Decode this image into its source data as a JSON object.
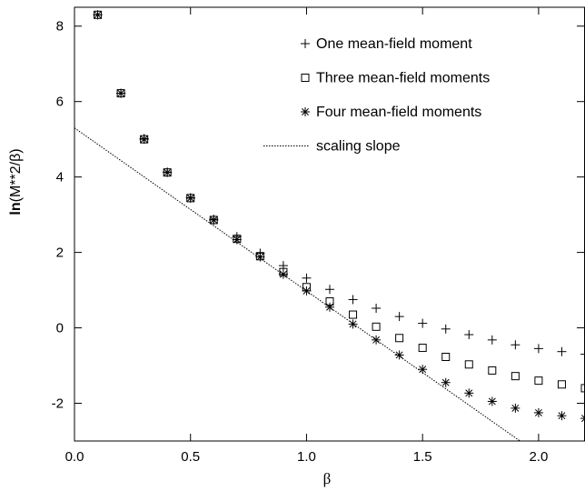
{
  "chart_data": {
    "type": "scatter",
    "xlabel": "β",
    "ylabel_bold": "ln",
    "ylabel_rest": "(M**2/β)",
    "xlim": [
      0.0,
      2.2
    ],
    "ylim": [
      -3.0,
      8.5
    ],
    "x_ticks": [
      0.0,
      0.5,
      1.0,
      1.5,
      2.0
    ],
    "x_tick_labels": [
      "0.0",
      "0.5",
      "1.0",
      "1.5",
      "2.0"
    ],
    "y_ticks": [
      -2,
      0,
      2,
      4,
      6,
      8
    ],
    "y_tick_labels": [
      "-2",
      "0",
      "2",
      "4",
      "6",
      "8"
    ],
    "legend_position": "top-right",
    "series": [
      {
        "name": "One mean-field moment",
        "marker": "plus",
        "x": [
          0.1,
          0.2,
          0.3,
          0.4,
          0.5,
          0.6,
          0.7,
          0.8,
          0.9,
          1.0,
          1.1,
          1.2,
          1.3,
          1.4,
          1.5,
          1.6,
          1.7,
          1.8,
          1.9,
          2.0,
          2.1,
          2.2
        ],
        "y": [
          8.3,
          6.22,
          5.02,
          4.13,
          3.45,
          2.88,
          2.42,
          1.98,
          1.65,
          1.32,
          1.02,
          0.75,
          0.52,
          0.3,
          0.12,
          -0.03,
          -0.18,
          -0.32,
          -0.45,
          -0.55,
          -0.63,
          -0.7
        ]
      },
      {
        "name": "Three mean-field moments",
        "marker": "square",
        "x": [
          0.1,
          0.2,
          0.3,
          0.4,
          0.5,
          0.6,
          0.7,
          0.8,
          0.9,
          1.0,
          1.1,
          1.2,
          1.3,
          1.4,
          1.5,
          1.6,
          1.7,
          1.8,
          1.9,
          2.0,
          2.1,
          2.2
        ],
        "y": [
          8.3,
          6.22,
          5.0,
          4.12,
          3.44,
          2.86,
          2.36,
          1.9,
          1.48,
          1.08,
          0.7,
          0.35,
          0.03,
          -0.27,
          -0.53,
          -0.77,
          -0.97,
          -1.13,
          -1.28,
          -1.4,
          -1.5,
          -1.6
        ]
      },
      {
        "name": "Four mean-field moments",
        "marker": "asterisk",
        "x": [
          0.1,
          0.2,
          0.3,
          0.4,
          0.5,
          0.6,
          0.7,
          0.8,
          0.9,
          1.0,
          1.1,
          1.2,
          1.3,
          1.4,
          1.5,
          1.6,
          1.7,
          1.8,
          1.9,
          2.0,
          2.1,
          2.2
        ],
        "y": [
          8.3,
          6.22,
          5.0,
          4.12,
          3.44,
          2.86,
          2.34,
          1.88,
          1.42,
          0.98,
          0.55,
          0.1,
          -0.32,
          -0.72,
          -1.1,
          -1.45,
          -1.73,
          -1.95,
          -2.13,
          -2.25,
          -2.33,
          -2.4
        ]
      },
      {
        "name": "scaling slope",
        "marker": "dotted-line",
        "x": [
          0.0,
          1.92
        ],
        "y": [
          5.3,
          -3.0
        ]
      }
    ]
  }
}
